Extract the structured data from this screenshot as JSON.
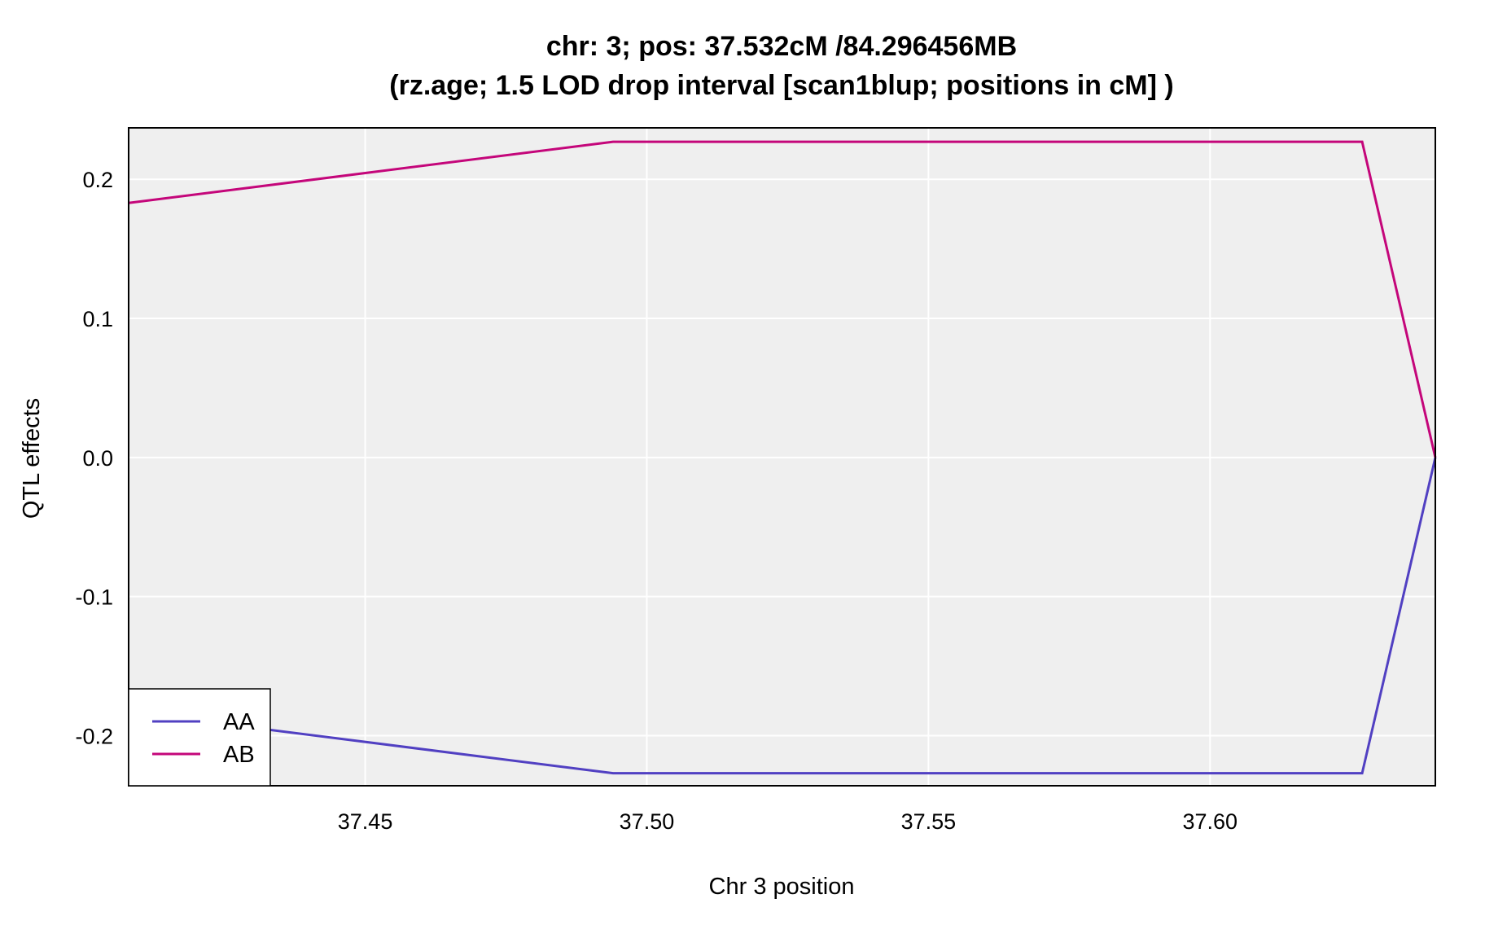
{
  "chart_data": {
    "type": "line",
    "title": "chr: 3; pos: 37.532cM /84.296456MB",
    "subtitle": "(rz.age; 1.5 LOD drop interval [scan1blup; positions in cM] )",
    "xlabel": "Chr 3 position",
    "ylabel": "QTL effects",
    "xlim": [
      37.408,
      37.64
    ],
    "ylim": [
      -0.236,
      0.237
    ],
    "xticks": [
      37.45,
      37.5,
      37.55,
      37.6
    ],
    "xtick_labels": [
      "37.45",
      "37.50",
      "37.55",
      "37.60"
    ],
    "yticks": [
      0.2,
      0.1,
      0.0,
      -0.1,
      -0.2
    ],
    "ytick_labels": [
      "0.2",
      "0.1",
      "0.0",
      "-0.1",
      "-0.2"
    ],
    "grid": true,
    "legend_position": "bottom-left",
    "series": [
      {
        "name": "AA",
        "color": "#5140c2",
        "x": [
          37.408,
          37.494,
          37.627,
          37.64
        ],
        "y": [
          -0.183,
          -0.227,
          -0.227,
          0.0
        ]
      },
      {
        "name": "AB",
        "color": "#c4067a",
        "x": [
          37.408,
          37.494,
          37.627,
          37.64
        ],
        "y": [
          0.183,
          0.227,
          0.227,
          0.0
        ]
      }
    ],
    "colors": {
      "panel_background": "#efefef",
      "grid": "#ffffff"
    }
  }
}
